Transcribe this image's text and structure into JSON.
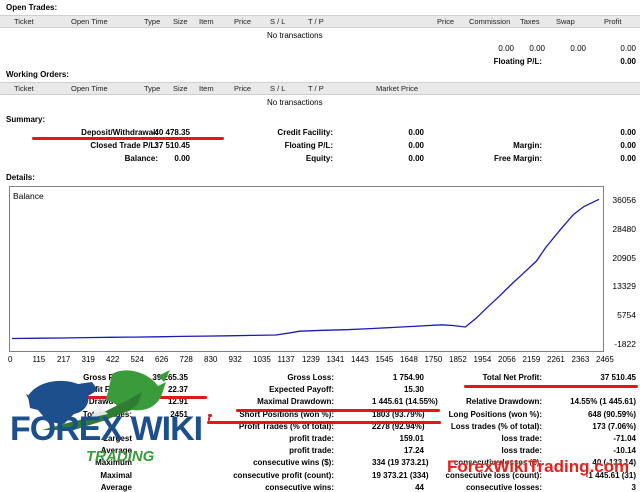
{
  "open_trades": {
    "title": "Open Trades:",
    "columns": [
      "Ticket",
      "Open Time",
      "Type",
      "Size",
      "Item",
      "Price",
      "S / L",
      "T / P",
      "Price",
      "Commission",
      "Taxes",
      "Swap",
      "Profit"
    ],
    "empty": "No transactions",
    "totals": [
      "0.00",
      "0.00",
      "0.00",
      "0.00"
    ],
    "floating_label": "Floating P/L:",
    "floating_value": "0.00"
  },
  "working_orders": {
    "title": "Working Orders:",
    "columns": [
      "Ticket",
      "Open Time",
      "Type",
      "Size",
      "Item",
      "Price",
      "S / L",
      "T / P",
      "Market Price"
    ],
    "empty": "No transactions"
  },
  "summary": {
    "title": "Summary:",
    "rows": [
      [
        {
          "l": "Deposit/Withdrawal:",
          "v": "-40 478.35"
        },
        {
          "l": "Credit Facility:",
          "v": "0.00"
        },
        {
          "l": "",
          "v": "0.00"
        }
      ],
      [
        {
          "l": "Closed Trade P/L:",
          "v": "37 510.45"
        },
        {
          "l": "Floating P/L:",
          "v": "0.00"
        },
        {
          "l": "Margin:",
          "v": "0.00"
        }
      ],
      [
        {
          "l": "Balance:",
          "v": "0.00"
        },
        {
          "l": "Equity:",
          "v": "0.00"
        },
        {
          "l": "Free Margin:",
          "v": "0.00"
        }
      ]
    ]
  },
  "details": {
    "title": "Details:",
    "chart_label": "Balance"
  },
  "chart_data": {
    "type": "line",
    "series": [
      {
        "name": "Balance",
        "x": [
          0,
          115,
          217,
          319,
          422,
          524,
          626,
          728,
          830,
          932,
          1035,
          1137,
          1200,
          1239,
          1341,
          1443,
          1545,
          1648,
          1750,
          1852,
          1900,
          1954,
          2000,
          2056,
          2100,
          2159,
          2200,
          2261,
          2300,
          2363,
          2420,
          2465,
          2530
        ],
        "values": [
          -100,
          -30,
          30,
          120,
          210,
          260,
          330,
          430,
          510,
          600,
          700,
          800,
          1400,
          1800,
          2050,
          2200,
          2500,
          2800,
          3150,
          3500,
          3300,
          2900,
          5200,
          8500,
          11000,
          14500,
          16800,
          20300,
          23800,
          28500,
          32500,
          34600,
          36500
        ]
      }
    ],
    "x_ticks": [
      "0",
      "115",
      "217",
      "319",
      "422",
      "524",
      "626",
      "728",
      "830",
      "932",
      "1035",
      "1137",
      "1239",
      "1341",
      "1443",
      "1545",
      "1648",
      "1750",
      "1852",
      "1954",
      "2056",
      "2159",
      "2261",
      "2363",
      "2465"
    ],
    "y_ticks": [
      "36056",
      "28480",
      "20905",
      "13329",
      "5754",
      "-1822"
    ],
    "ylim": [
      -1822,
      36056
    ],
    "color": "#1a1ab4"
  },
  "stats": {
    "rows": [
      [
        {
          "l": "Gross Profit:",
          "v": "39 265.35"
        },
        {
          "l": "Gross Loss:",
          "v": "1 754.90"
        },
        {
          "l": "Total Net Profit:",
          "v": "37 510.45"
        }
      ],
      [
        {
          "l": "Profit Factor:",
          "v": "22.37"
        },
        {
          "l": "Expected Payoff:",
          "v": "15.30"
        },
        {
          "l": "",
          "v": ""
        }
      ],
      [
        {
          "l": "Absolute Drawdown:",
          "v": "12.91"
        },
        {
          "l": "Maximal Drawdown:",
          "v": "1 445.61 (14.55%)"
        },
        {
          "l": "Relative Drawdown:",
          "v": "14.55% (1 445.61)"
        }
      ],
      [
        {
          "l": "Total Trades:",
          "v": "2451"
        },
        {
          "l": "Short Positions (won %):",
          "v": "1803 (93.79%)"
        },
        {
          "l": "Long Positions (won %):",
          "v": "648 (90.59%)"
        }
      ],
      [
        {
          "l": "",
          "v": ""
        },
        {
          "l": "Profit Trades (% of total):",
          "v": "2278 (92.94%)"
        },
        {
          "l": "Loss trades (% of total):",
          "v": "173 (7.06%)"
        }
      ],
      [
        {
          "l": "Largest",
          "v": ""
        },
        {
          "l": "profit trade:",
          "v": "159.01"
        },
        {
          "l": "loss trade:",
          "v": "-71.04"
        }
      ],
      [
        {
          "l": "Average",
          "v": ""
        },
        {
          "l": "profit trade:",
          "v": "17.24"
        },
        {
          "l": "loss trade:",
          "v": "-10.14"
        }
      ],
      [
        {
          "l": "Maximum",
          "v": ""
        },
        {
          "l": "consecutive wins ($):",
          "v": "334 (19 373.21)"
        },
        {
          "l": "consecutive losses ($):",
          "v": "40 (-133.14)"
        }
      ],
      [
        {
          "l": "Maximal",
          "v": ""
        },
        {
          "l": "consecutive profit (count):",
          "v": "19 373.21 (334)"
        },
        {
          "l": "consecutive loss (count):",
          "v": "-1 445.61 (31)"
        }
      ],
      [
        {
          "l": "Average",
          "v": ""
        },
        {
          "l": "consecutive wins:",
          "v": "44"
        },
        {
          "l": "consecutive losses:",
          "v": "3"
        }
      ]
    ]
  },
  "watermark": {
    "brand": "FOREX WIKI",
    "sub": "TRADING",
    "url": "ForexWikiTrading.com",
    "colors": {
      "blue": "#1d4f8c",
      "green": "#3a9b3a",
      "url_red": "#e8201a"
    }
  }
}
